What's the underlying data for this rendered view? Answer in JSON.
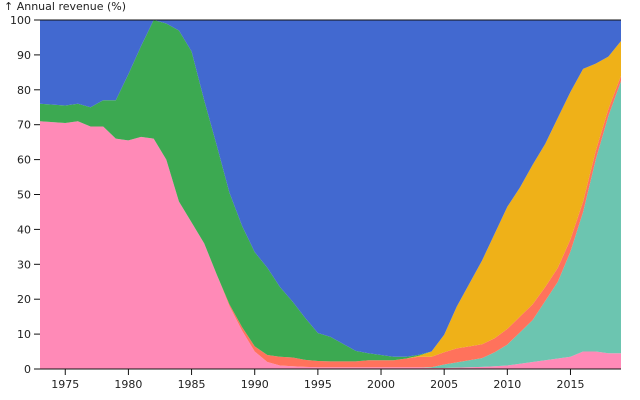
{
  "chart_data": {
    "type": "area",
    "stacked": true,
    "normalized": true,
    "title": "",
    "ylabel": "↑ Annual revenue (%)",
    "xlabel": "",
    "xlim": [
      1973,
      2019
    ],
    "ylim": [
      0,
      100
    ],
    "x_ticks": [
      1975,
      1980,
      1985,
      1990,
      1995,
      2000,
      2005,
      2010,
      2015
    ],
    "y_ticks": [
      0,
      10,
      20,
      30,
      40,
      50,
      60,
      70,
      80,
      90,
      100
    ],
    "grid": false,
    "legend": "none",
    "x": [
      1973,
      1975,
      1976,
      1977,
      1978,
      1979,
      1980,
      1981,
      1982,
      1983,
      1984,
      1985,
      1986,
      1987,
      1988,
      1989,
      1990,
      1991,
      1992,
      1993,
      1994,
      1995,
      1996,
      1997,
      1998,
      1999,
      2000,
      2001,
      2002,
      2003,
      2004,
      2005,
      2006,
      2007,
      2008,
      2009,
      2010,
      2011,
      2012,
      2013,
      2014,
      2015,
      2016,
      2017,
      2018,
      2019
    ],
    "series": [
      {
        "color": "#ff8ab7",
        "values": [
          71,
          70.5,
          71,
          69.5,
          69.5,
          66,
          65.5,
          66.5,
          66,
          60,
          48,
          42,
          36,
          27,
          18,
          11,
          5,
          2,
          1,
          0.8,
          0.6,
          0.5,
          0.5,
          0.5,
          0.5,
          0.5,
          0.5,
          0.5,
          0.5,
          0.5,
          0.3,
          0.3,
          0.4,
          0.5,
          0.6,
          0.8,
          1,
          1.5,
          2,
          2.5,
          3,
          3.5,
          5,
          5,
          4.5,
          4.5
        ]
      },
      {
        "color": "#6cc5b0",
        "values": [
          0,
          0,
          0,
          0,
          0,
          0,
          0,
          0,
          0,
          0,
          0,
          0,
          0,
          0,
          0,
          0,
          0,
          0,
          0,
          0,
          0,
          0,
          0,
          0,
          0,
          0,
          0,
          0,
          0,
          0,
          0.2,
          1,
          1.5,
          2,
          2.5,
          4,
          6,
          9,
          12,
          17,
          22,
          30,
          40,
          55,
          68,
          78
        ]
      },
      {
        "color": "#ff725c",
        "values": [
          0,
          0,
          0,
          0,
          0,
          0,
          0,
          0,
          0,
          0,
          0,
          0,
          0,
          0,
          0.5,
          1,
          1.5,
          2,
          2.5,
          2.5,
          2,
          1.8,
          1.7,
          1.7,
          1.7,
          2,
          2,
          2,
          2.5,
          3,
          3,
          3.5,
          4,
          4,
          4,
          4,
          4.5,
          4.5,
          4.5,
          4,
          4,
          3.5,
          3,
          2.5,
          2,
          1.5
        ]
      },
      {
        "color": "#efb118",
        "values": [
          0,
          0,
          0,
          0,
          0,
          0,
          0,
          0,
          0,
          0,
          0,
          0,
          0,
          0,
          0,
          0,
          0,
          0,
          0,
          0,
          0,
          0,
          0,
          0,
          0,
          0,
          0,
          0,
          0,
          0.3,
          1.5,
          5,
          12,
          18,
          24,
          30,
          35,
          37,
          40,
          41,
          43,
          42,
          38,
          25,
          15,
          10
        ]
      },
      {
        "color": "#3ca951",
        "values": [
          5,
          5,
          5,
          5.5,
          7.5,
          11,
          19,
          26,
          34,
          39,
          49,
          49,
          41,
          37,
          32,
          29,
          27,
          25,
          20,
          16,
          12,
          8,
          7,
          5,
          3,
          2,
          1.5,
          1,
          0.5,
          0.3,
          0,
          0,
          0,
          0,
          0,
          0,
          0,
          0,
          0,
          0,
          0,
          0,
          0,
          0,
          0,
          0
        ]
      },
      {
        "color": "#4269d0",
        "values": [
          24,
          24.5,
          24,
          25,
          23,
          23,
          15.5,
          7.5,
          0,
          1,
          3,
          9,
          23,
          36,
          49.5,
          59,
          66.5,
          71,
          76.5,
          80.7,
          85.4,
          89.7,
          90.8,
          92.8,
          94.8,
          95.5,
          96,
          96.5,
          96.5,
          95.9,
          95,
          90.2,
          82.1,
          75.5,
          68.9,
          61.2,
          53.5,
          48,
          41.5,
          35.5,
          28,
          20.5,
          14,
          12.5,
          10.5,
          6
        ]
      }
    ]
  }
}
